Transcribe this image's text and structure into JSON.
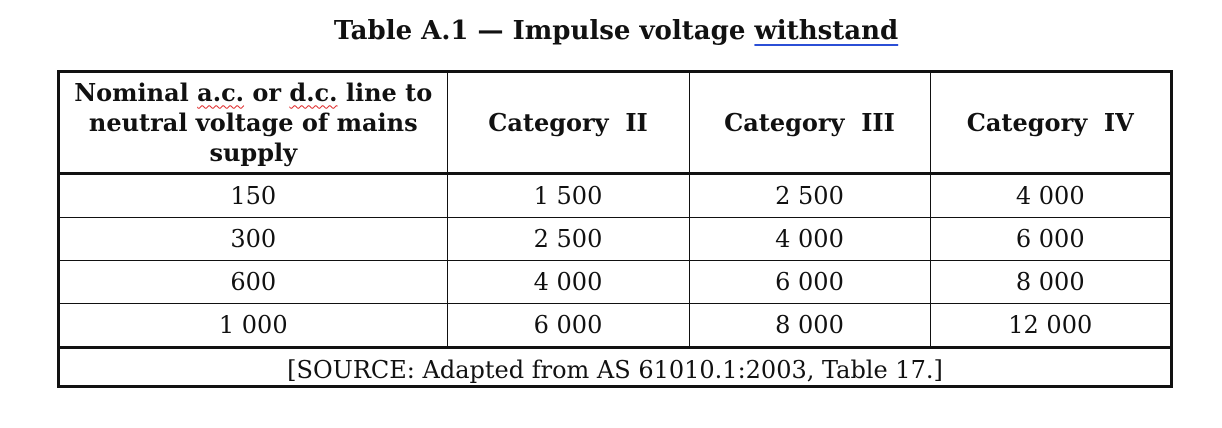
{
  "title": {
    "prefix": "Table A.1 — Impulse voltage ",
    "underlined": "withstand"
  },
  "table": {
    "header": {
      "col0": {
        "part1": "Nominal ",
        "part2": "a.c.",
        "part3": " or ",
        "part4": "d.c.",
        "part5": " line to",
        "line2": "neutral voltage of mains",
        "line3": "supply"
      },
      "col1": "Category  II",
      "col2": "Category  III",
      "col3": "Category  IV"
    },
    "rows": [
      [
        "150",
        "1 500",
        "2 500",
        "4 000"
      ],
      [
        "300",
        "2 500",
        "4 000",
        "6 000"
      ],
      [
        "600",
        "4 000",
        "6 000",
        "8 000"
      ],
      [
        "1 000",
        "6 000",
        "8 000",
        "12 000"
      ]
    ],
    "source": "[SOURCE: Adapted from AS 61010.1:2003, Table 17.]"
  },
  "colors": {
    "underline": "#2b4fd6",
    "spellcheck": "#dd2222"
  }
}
